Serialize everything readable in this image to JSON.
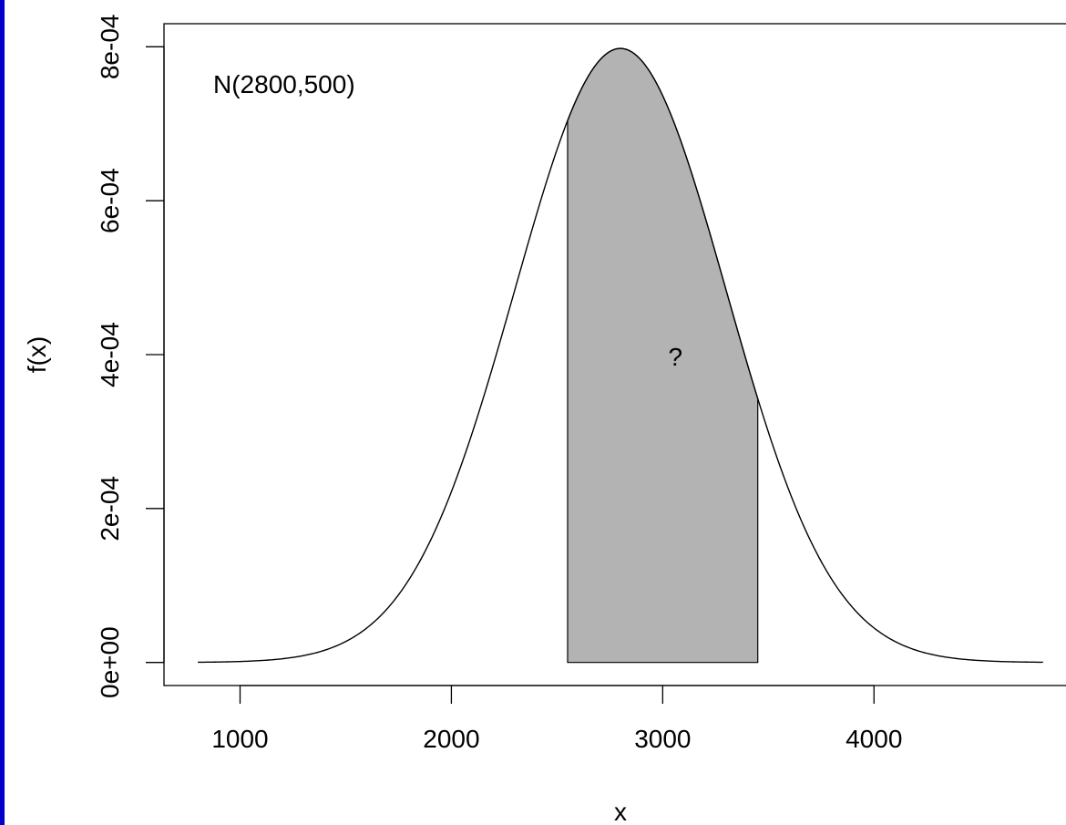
{
  "colors": {
    "left_border": "#0000cc",
    "shade": "#b3b3b3",
    "line": "#000000",
    "background": "#ffffff"
  },
  "chart_data": {
    "type": "area",
    "distribution": "normal",
    "mean": 2800,
    "sd": 500,
    "annotation": "N(2800,500)",
    "shaded_region": {
      "from": 2550,
      "to": 3450,
      "label": "?"
    },
    "curve_x_range": [
      800,
      4800
    ],
    "xlabel": "x",
    "ylabel": "f(x)",
    "xlim": [
      640,
      4900
    ],
    "ylim": [
      -3e-05,
      0.00083
    ],
    "x_ticks": [
      1000,
      2000,
      3000,
      4000
    ],
    "x_tick_labels": [
      "1000",
      "2000",
      "3000",
      "4000"
    ],
    "y_ticks": [
      0,
      0.0002,
      0.0004,
      0.0006,
      0.0008
    ],
    "y_tick_labels": [
      "0e+00",
      "2e-04",
      "4e-04",
      "6e-04",
      "8e-04"
    ],
    "grid": false,
    "legend": "none"
  }
}
